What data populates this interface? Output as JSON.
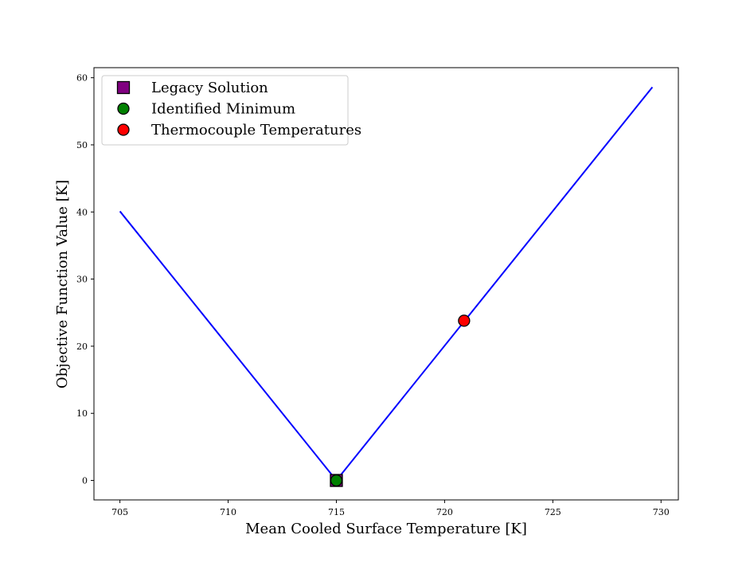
{
  "chart_data": {
    "type": "line",
    "title": "",
    "xlabel": "Mean Cooled Surface Temperature [K]",
    "ylabel": "Objective Function Value [K]",
    "xlim": [
      703.8,
      730.8
    ],
    "ylim": [
      -2.9,
      61.5
    ],
    "xticks": [
      705,
      710,
      715,
      720,
      725,
      730
    ],
    "yticks": [
      0,
      10,
      20,
      30,
      40,
      50,
      60
    ],
    "grid": false,
    "legend_position": "top-left",
    "series": [
      {
        "kind": "line",
        "color": "#0000ff",
        "x": [
          705,
          715,
          729.6
        ],
        "y": [
          40.1,
          0,
          58.6
        ]
      },
      {
        "name": "Legacy Solution",
        "kind": "marker",
        "marker": "square",
        "color": "#800080",
        "x": [
          715
        ],
        "y": [
          0
        ]
      },
      {
        "name": "Identified Minimum",
        "kind": "marker",
        "marker": "circle",
        "color": "#008000",
        "x": [
          715
        ],
        "y": [
          0
        ]
      },
      {
        "name": "Thermocouple Temperatures",
        "kind": "marker",
        "marker": "circle",
        "color": "#ff0000",
        "x": [
          720.9
        ],
        "y": [
          23.8
        ]
      }
    ]
  }
}
